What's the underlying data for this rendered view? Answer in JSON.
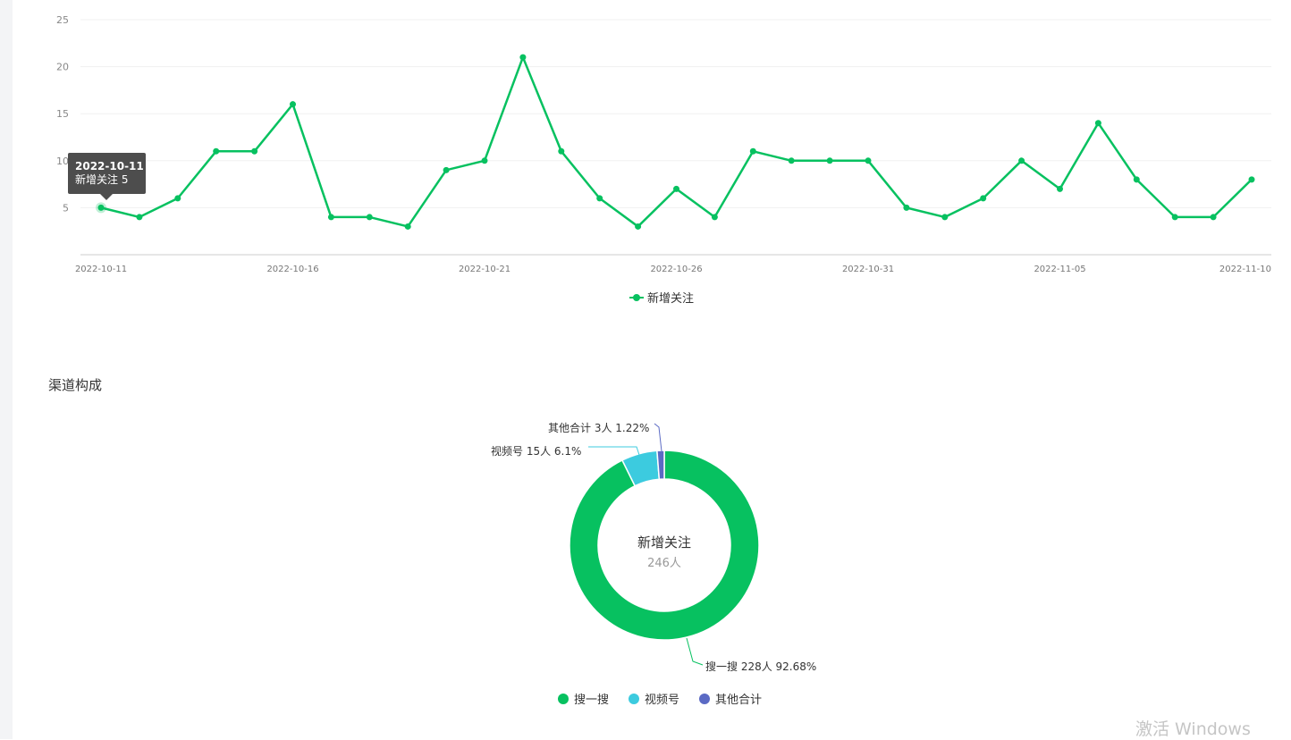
{
  "chart_data": [
    {
      "type": "line",
      "x": [
        "2022-10-11",
        "2022-10-12",
        "2022-10-13",
        "2022-10-14",
        "2022-10-15",
        "2022-10-16",
        "2022-10-17",
        "2022-10-18",
        "2022-10-19",
        "2022-10-20",
        "2022-10-21",
        "2022-10-22",
        "2022-10-23",
        "2022-10-24",
        "2022-10-25",
        "2022-10-26",
        "2022-10-27",
        "2022-10-28",
        "2022-10-29",
        "2022-10-30",
        "2022-10-31",
        "2022-11-01",
        "2022-11-02",
        "2022-11-03",
        "2022-11-04",
        "2022-11-05",
        "2022-11-06",
        "2022-11-07",
        "2022-11-08",
        "2022-11-09",
        "2022-11-10"
      ],
      "x_tick_labels": [
        "2022-10-11",
        "2022-10-16",
        "2022-10-21",
        "2022-10-26",
        "2022-10-31",
        "2022-11-05",
        "2022-11-10"
      ],
      "y_tick_labels": [
        "5",
        "10",
        "15",
        "20",
        "25"
      ],
      "series": [
        {
          "name": "新增关注",
          "color": "#07c160",
          "values": [
            5,
            4,
            6,
            11,
            11,
            16,
            4,
            4,
            3,
            9,
            10,
            21,
            11,
            6,
            3,
            7,
            4,
            11,
            10,
            10,
            10,
            5,
            4,
            6,
            10,
            7,
            14,
            8,
            4,
            4,
            8
          ]
        }
      ],
      "ylim": [
        0,
        25
      ],
      "grid": true,
      "legend": "bottom-center",
      "tooltip": {
        "date": "2022-10-11",
        "series": "新增关注",
        "value": "5"
      }
    },
    {
      "type": "pie",
      "title": "渠道构成",
      "donut": true,
      "center_title": "新增关注",
      "center_value": "246人",
      "slices": [
        {
          "name": "搜一搜",
          "value": 228,
          "percent": 92.68,
          "label": "搜一搜 228人 92.68%",
          "color": "#07c160"
        },
        {
          "name": "视频号",
          "value": 15,
          "percent": 6.1,
          "label": "视频号 15人 6.1%",
          "color": "#3ccbdf"
        },
        {
          "name": "其他合计",
          "value": 3,
          "percent": 1.22,
          "label": "其他合计 3人 1.22%",
          "color": "#5b6ac4"
        }
      ],
      "legend": "bottom-center"
    }
  ],
  "watermark": "激活 Windows"
}
